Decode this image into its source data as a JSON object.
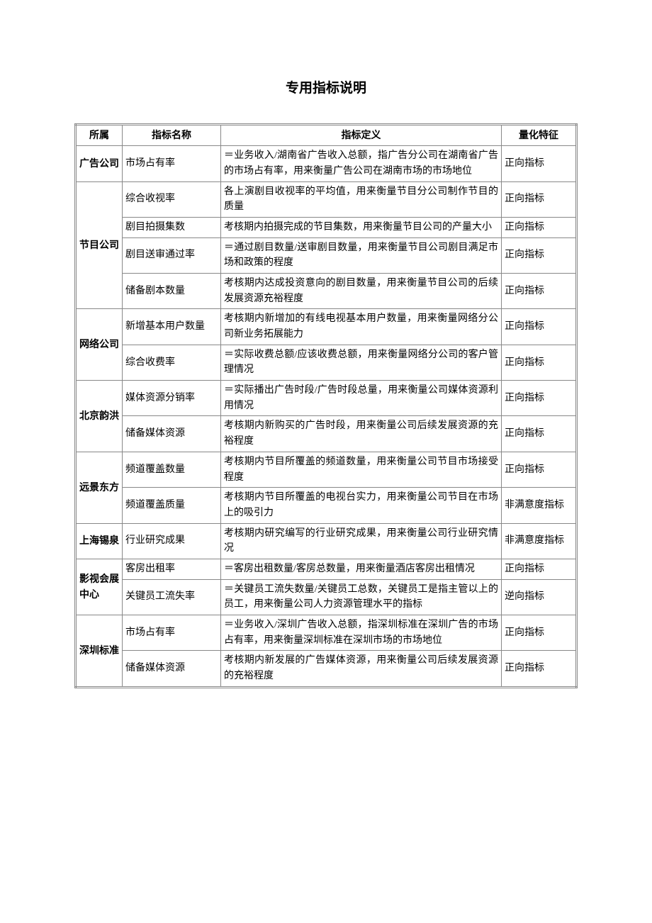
{
  "document": {
    "title": "专用指标说明",
    "columns": [
      "所属",
      "指标名称",
      "指标定义",
      "量化特征"
    ],
    "colors": {
      "background": "#ffffff",
      "text": "#000000",
      "border": "#888888"
    },
    "typography": {
      "body_font": "SimSun",
      "heading_font": "SimHei",
      "body_size_pt": 10.5,
      "title_size_pt": 14
    },
    "groups": [
      {
        "id": "adv",
        "name": "广告公司",
        "rows": [
          {
            "name": "市场占有率",
            "def": "＝业务收入/湖南省广告收入总额，指广告分公司在湖南省广告的市场占有率，用来衡量广告公司在湖南市场的市场地位",
            "type": "正向指标"
          }
        ]
      },
      {
        "id": "prog",
        "name": "节目公司",
        "rows": [
          {
            "name": "综合收视率",
            "def": "各上演剧目收视率的平均值，用来衡量节目分公司制作节目的质量",
            "type": "正向指标"
          },
          {
            "name": "剧目拍摄集数",
            "def": "考核期内拍摄完成的节目集数，用来衡量节目公司的产量大小",
            "type": "正向指标"
          },
          {
            "name": "剧目送审通过率",
            "def": "＝通过剧目数量/送审剧目数量，用来衡量节目公司剧目满足市场和政策的程度",
            "type": "正向指标"
          },
          {
            "name": "储备剧本数量",
            "def": "考核期内达成投资意向的剧目数量，用来衡量节目公司的后续发展资源充裕程度",
            "type": "正向指标"
          }
        ]
      },
      {
        "id": "net",
        "name": "网络公司",
        "rows": [
          {
            "name": "新增基本用户数量",
            "def": "考核期内新增加的有线电视基本用户数量，用来衡量网络分公司新业务拓展能力",
            "type": "正向指标"
          },
          {
            "name": "综合收费率",
            "def": "＝实际收费总额/应该收费总额，用来衡量网络分公司的客户管理情况",
            "type": "正向指标"
          }
        ]
      },
      {
        "id": "bjyh",
        "name": "北京韵洪",
        "rows": [
          {
            "name": "媒体资源分销率",
            "def": "＝实际播出广告时段/广告时段总量，用来衡量公司媒体资源利用情况",
            "type": "正向指标"
          },
          {
            "name": "储备媒体资源",
            "def": "考核期内新购买的广告时段，用来衡量公司后续发展资源的充裕程度",
            "type": "正向指标"
          }
        ]
      },
      {
        "id": "yjdf",
        "name": "远景东方",
        "rows": [
          {
            "name": "频道覆盖数量",
            "def": "考核期内节目所覆盖的频道数量，用来衡量公司节目市场接受程度",
            "type": "正向指标"
          },
          {
            "name": "频道覆盖质量",
            "def": "考核期内节目所覆盖的电视台实力，用来衡量公司节目在市场上的吸引力",
            "type": "非满意度指标"
          }
        ]
      },
      {
        "id": "shxq",
        "name": "上海锡泉",
        "rows": [
          {
            "name": "行业研究成果",
            "def": "考核期内研究编写的行业研究成果，用来衡量公司行业研究情况",
            "type": "非满意度指标"
          }
        ]
      },
      {
        "id": "yshz",
        "name": "影视会展中心",
        "rows": [
          {
            "name": "客房出租率",
            "def": "＝客房出租数量/客房总数量，用来衡量酒店客房出租情况",
            "type": "正向指标"
          },
          {
            "name": "关键员工流失率",
            "def": "＝关键员工流失数量/关键员工总数，关键员工是指主管以上的员工，用来衡量公司人力资源管理水平的指标",
            "type": "逆向指标"
          }
        ]
      },
      {
        "id": "szbz",
        "name": "深圳标准",
        "rows": [
          {
            "name": "市场占有率",
            "def": "＝业务收入/深圳广告收入总额，指深圳标准在深圳广告的市场占有率，用来衡量深圳标准在深圳市场的市场地位",
            "type": "正向指标"
          },
          {
            "name": "储备媒体资源",
            "def": "考核期内新发展的广告媒体资源，用来衡量公司后续发展资源的充裕程度",
            "type": "正向指标"
          }
        ]
      }
    ]
  }
}
